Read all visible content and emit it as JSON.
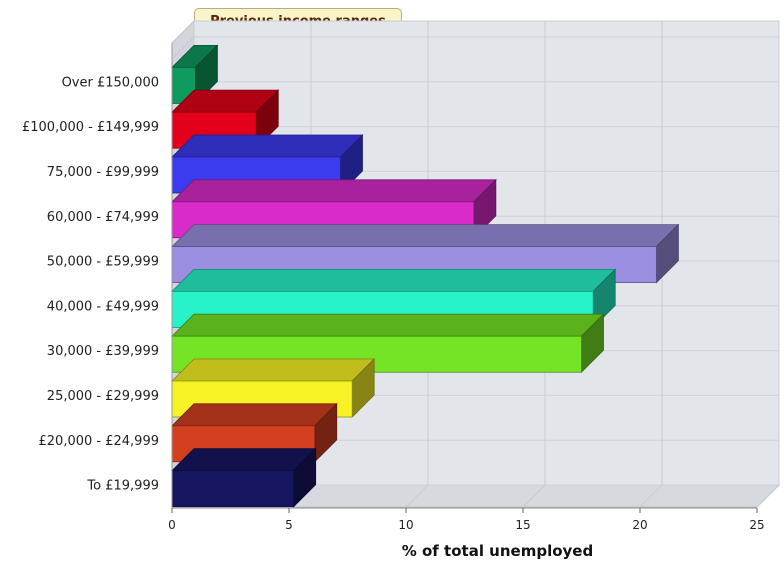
{
  "chart_data": {
    "type": "bar",
    "orientation": "horizontal",
    "style": "3d",
    "title": "Previous income ranges",
    "xlabel": "% of total unemployed",
    "ylabel": "",
    "xlim": [
      0,
      25
    ],
    "xticks": [
      0,
      5,
      10,
      15,
      20,
      25
    ],
    "grid": true,
    "categories": [
      "Over £150,000",
      "£100,000 - £149,999",
      "75,000 - £99,999",
      "60,000 - £74,999",
      "50,000 - £59,999",
      "40,000 - £49,999",
      "30,000 - £39,999",
      "25,000 - £29,999",
      "£20,000 - £24,999",
      "To £19,999"
    ],
    "values": [
      1.0,
      3.6,
      7.2,
      12.9,
      20.7,
      18.0,
      17.5,
      7.7,
      6.1,
      5.2
    ],
    "colors": [
      "#0f9a5e",
      "#e2001a",
      "#3b3bf0",
      "#d92bc9",
      "#9a8ee0",
      "#27f2c8",
      "#74e424",
      "#f7f225",
      "#d24020",
      "#161660"
    ]
  }
}
